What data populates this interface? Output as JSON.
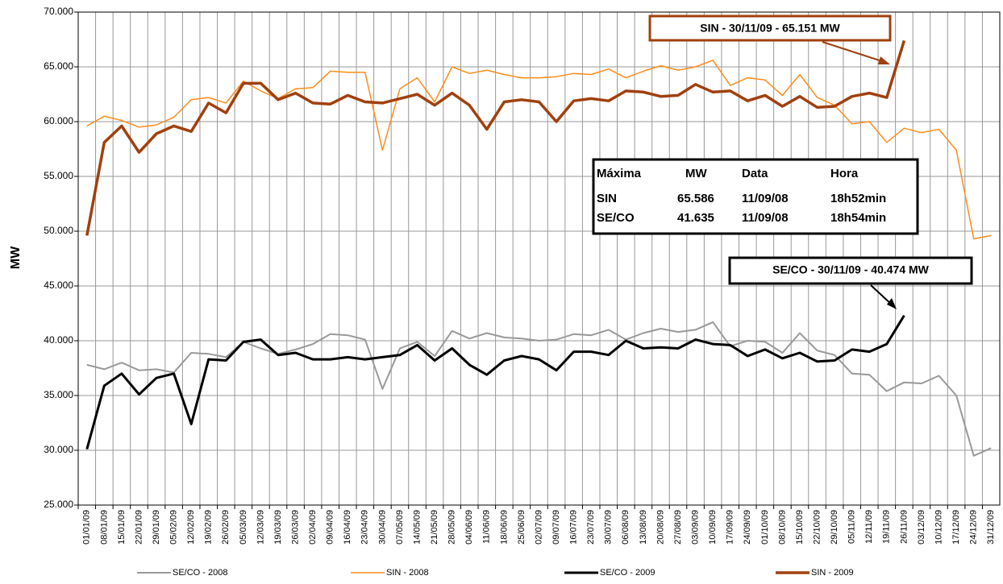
{
  "chart_data": {
    "type": "line",
    "y_label": "MW",
    "categories": [
      "01/01/09",
      "08/01/09",
      "15/01/09",
      "22/01/09",
      "29/01/09",
      "05/02/09",
      "12/02/09",
      "19/02/09",
      "26/02/09",
      "05/03/09",
      "12/03/09",
      "19/03/09",
      "26/03/09",
      "02/04/09",
      "09/04/09",
      "16/04/09",
      "23/04/09",
      "30/04/09",
      "07/05/09",
      "14/05/09",
      "21/05/09",
      "28/05/09",
      "04/06/09",
      "11/06/09",
      "18/06/09",
      "25/06/09",
      "02/07/09",
      "09/07/09",
      "16/07/09",
      "23/07/09",
      "30/07/09",
      "06/08/09",
      "13/08/09",
      "20/08/09",
      "27/08/09",
      "03/09/09",
      "10/09/09",
      "17/09/09",
      "24/09/09",
      "01/10/09",
      "08/10/09",
      "15/10/09",
      "22/10/09",
      "29/10/09",
      "05/11/09",
      "12/11/09",
      "19/11/09",
      "26/11/09",
      "03/12/09",
      "10/12/09",
      "17/12/09",
      "24/12/09",
      "31/12/09"
    ],
    "series": [
      {
        "name": "SE/CO - 2008",
        "color": "#999999",
        "width": 2,
        "values": [
          37800,
          37400,
          38000,
          37300,
          37400,
          37100,
          38900,
          38800,
          38500,
          39900,
          39300,
          38800,
          39200,
          39700,
          40600,
          40500,
          40100,
          35600,
          39300,
          39900,
          38600,
          40900,
          40200,
          40700,
          40300,
          40200,
          40000,
          40100,
          40600,
          40500,
          41000,
          40100,
          40700,
          41100,
          40800,
          41000,
          41700,
          39500,
          40000,
          39900,
          38900,
          40700,
          39100,
          38700,
          37000,
          36900,
          35400,
          36200,
          36100,
          36800,
          35000,
          29500,
          30200
        ]
      },
      {
        "name": "SIN - 2008",
        "color": "#ff8c1a",
        "width": 1.5,
        "values": [
          59600,
          60500,
          60100,
          59500,
          59700,
          60400,
          62000,
          62200,
          61700,
          63700,
          62800,
          62100,
          63000,
          63100,
          64600,
          64500,
          64500,
          57400,
          63000,
          64000,
          61800,
          65000,
          64400,
          64700,
          64300,
          64000,
          64000,
          64100,
          64400,
          64300,
          64800,
          64000,
          64600,
          65100,
          64700,
          65000,
          65600,
          63300,
          64000,
          63800,
          62400,
          64300,
          62200,
          61500,
          59800,
          60000,
          58100,
          59400,
          59000,
          59300,
          57400,
          49300,
          49600
        ]
      },
      {
        "name": "SE/CO - 2009",
        "color": "#000000",
        "width": 3,
        "values": [
          30100,
          35900,
          37000,
          35100,
          36600,
          37000,
          32400,
          38300,
          38200,
          39900,
          40100,
          38700,
          38900,
          38300,
          38300,
          38500,
          38300,
          38500,
          38700,
          39600,
          38200,
          39300,
          37800,
          36900,
          38200,
          38600,
          38300,
          37300,
          39000,
          39000,
          38700,
          40000,
          39300,
          39400,
          39300,
          40100,
          39700,
          39600,
          38600,
          39200,
          38400,
          38900,
          38100,
          38200,
          39200,
          39000,
          39700,
          42300,
          null,
          null,
          null,
          null,
          null
        ]
      },
      {
        "name": "SIN - 2009",
        "color": "#a0400f",
        "width": 3.5,
        "values": [
          49600,
          58100,
          59600,
          57200,
          58900,
          59600,
          59100,
          61700,
          60800,
          63500,
          63500,
          62000,
          62600,
          61700,
          61600,
          62400,
          61800,
          61700,
          62100,
          62500,
          61500,
          62600,
          61500,
          59300,
          61800,
          62000,
          61800,
          60000,
          61900,
          62100,
          61900,
          62800,
          62700,
          62300,
          62400,
          63400,
          62700,
          62800,
          61900,
          62400,
          61400,
          62300,
          61300,
          61400,
          62300,
          62600,
          62200,
          67400,
          null,
          null,
          null,
          null,
          null
        ]
      }
    ],
    "ylim": [
      25000,
      70000
    ],
    "yticks": [
      {
        "value": 25000,
        "label": "25.000"
      },
      {
        "value": 30000,
        "label": "30.000"
      },
      {
        "value": 35000,
        "label": "35.000"
      },
      {
        "value": 40000,
        "label": "40.000"
      },
      {
        "value": 45000,
        "label": "45.000"
      },
      {
        "value": 50000,
        "label": "50.000"
      },
      {
        "value": 55000,
        "label": "55.000"
      },
      {
        "value": 60000,
        "label": "60.000"
      },
      {
        "value": 65000,
        "label": "65.000"
      },
      {
        "value": 70000,
        "label": "70.000"
      }
    ],
    "grid": true,
    "legend": "bottom",
    "annotations": [
      "SIN - 30/11/09 - 65.151 MW",
      "SE/CO - 30/11/09 - 40.474 MW"
    ],
    "info_table": {
      "header": [
        "Máxima",
        "MW",
        "Data",
        "Hora"
      ],
      "rows": [
        [
          "SIN",
          "65.586",
          "11/09/08",
          "18h52min"
        ],
        [
          "SE/CO",
          "41.635",
          "11/09/08",
          "18h54min"
        ]
      ]
    }
  }
}
